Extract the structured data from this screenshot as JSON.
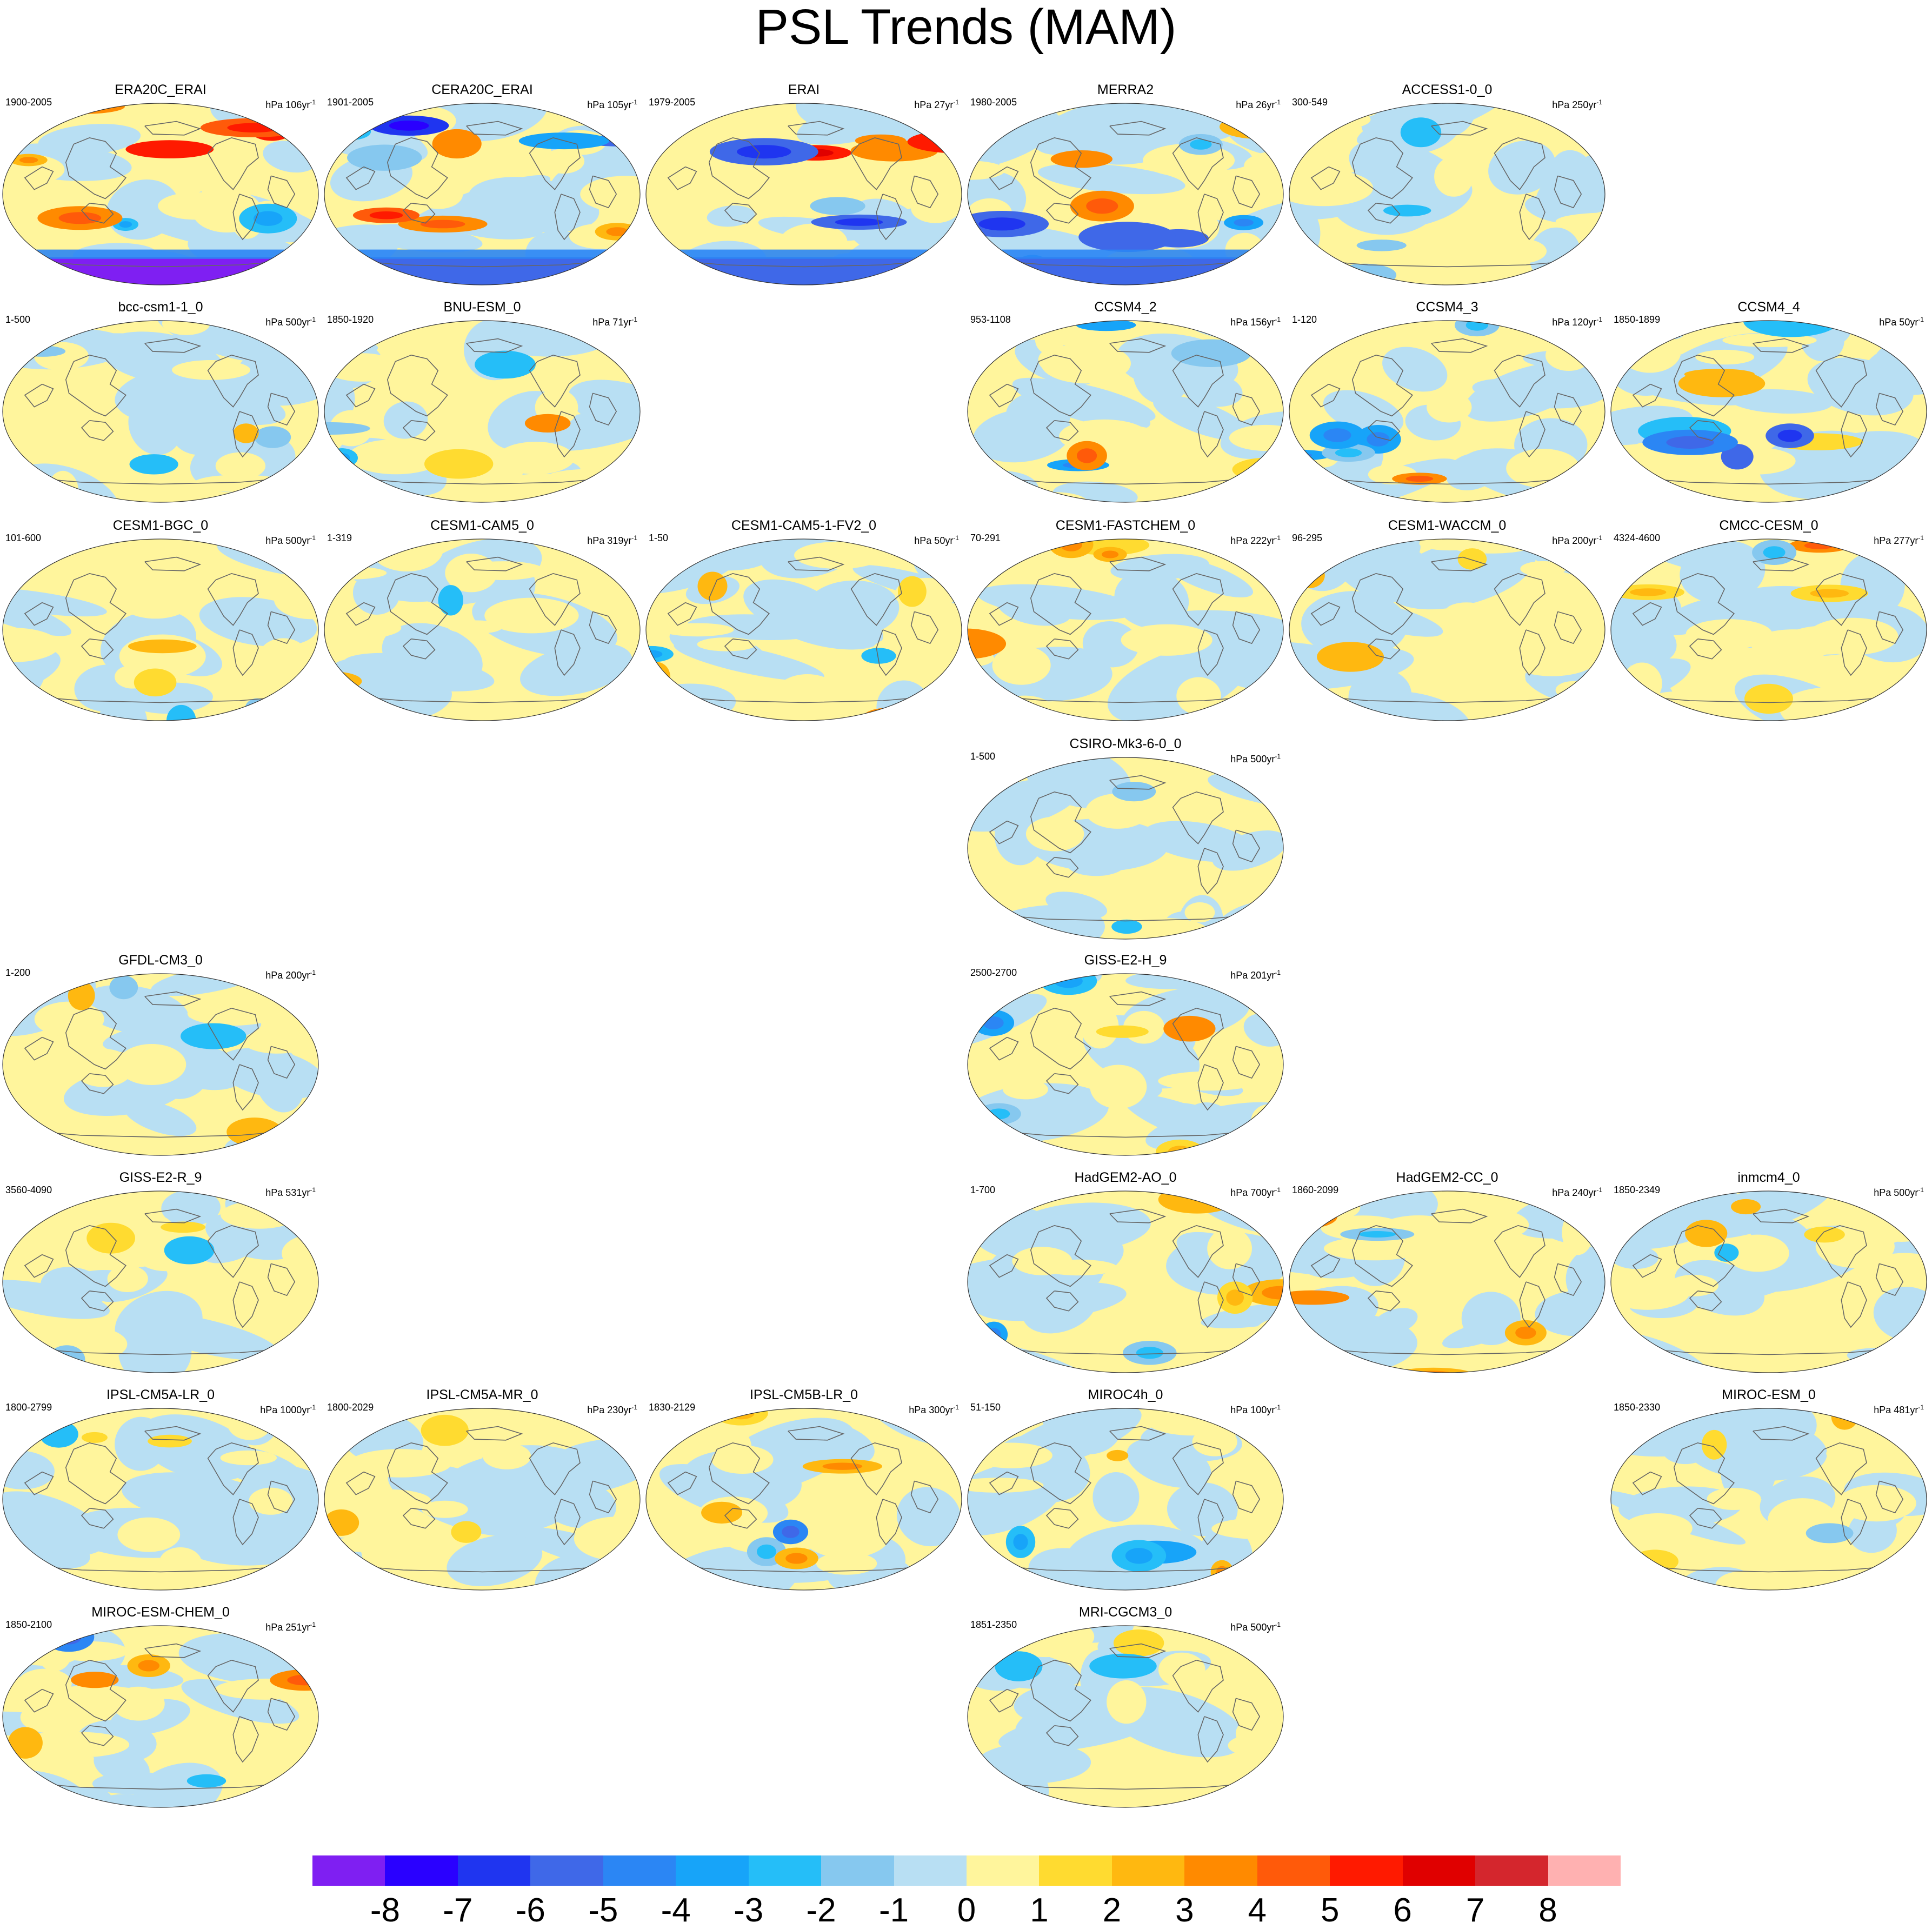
{
  "title": "PSL Trends (MAM)",
  "colors": {
    "neg8": "#7f1ff2",
    "neg7": "#2a00ff",
    "neg6": "#1f35f0",
    "neg5": "#3f68e8",
    "neg4": "#2b86f4",
    "neg3": "#17a4f9",
    "neg2": "#25bef8",
    "neg1": "#86c8ef",
    "neg0": "#b8dff3",
    "pos0": "#fff59c",
    "pos1": "#ffdb30",
    "pos2": "#ffb810",
    "pos3": "#ff8a00",
    "pos4": "#ff5a0a",
    "pos5": "#ff1a00",
    "pos6": "#e00000",
    "pos7": "#d4262d",
    "pos8": "#ffb1b1",
    "coast": "#666666",
    "outline": "#333333"
  },
  "colorbar": {
    "labels": [
      "-8",
      "-7",
      "-6",
      "-5",
      "-4",
      "-3",
      "-2",
      "-1",
      "0",
      "1",
      "2",
      "3",
      "4",
      "5",
      "6",
      "7",
      "8"
    ],
    "box_colors": [
      "#7f1ff2",
      "#2a00ff",
      "#1f35f0",
      "#3f68e8",
      "#2b86f4",
      "#17a4f9",
      "#25bef8",
      "#86c8ef",
      "#b8dff3",
      "#fff59c",
      "#ffdb30",
      "#ffb810",
      "#ff8a00",
      "#ff5a0a",
      "#ff1a00",
      "#e00000",
      "#d4262d",
      "#ffb1b1"
    ]
  },
  "panels": [
    {
      "name": "ERA20C_ERAI",
      "range": "1900-2005",
      "units_prefix": "hPa 106yr",
      "units_exp": "-1",
      "col": 0,
      "row": 0,
      "pattern": "strong",
      "seed": 11
    },
    {
      "name": "CERA20C_ERAI",
      "range": "1901-2005",
      "units_prefix": "hPa 105yr",
      "units_exp": "-1",
      "col": 1,
      "row": 0,
      "pattern": "strong",
      "seed": 23
    },
    {
      "name": "ERAI",
      "range": "1979-2005",
      "units_prefix": "hPa 27yr",
      "units_exp": "-1",
      "col": 2,
      "row": 0,
      "pattern": "strong",
      "seed": 37
    },
    {
      "name": "MERRA2",
      "range": "1980-2005",
      "units_prefix": "hPa 26yr",
      "units_exp": "-1",
      "col": 3,
      "row": 0,
      "pattern": "strong",
      "seed": 41
    },
    {
      "name": "ACCESS1-0_0",
      "range": "300-549",
      "units_prefix": "hPa 250yr",
      "units_exp": "-1",
      "col": 4,
      "row": 0,
      "pattern": "weak",
      "seed": 53
    },
    {
      "name": "bcc-csm1-1_0",
      "range": "1-500",
      "units_prefix": "hPa 500yr",
      "units_exp": "-1",
      "col": 0,
      "row": 1,
      "pattern": "weak",
      "seed": 61
    },
    {
      "name": "BNU-ESM_0",
      "range": "1850-1920",
      "units_prefix": "hPa 71yr",
      "units_exp": "-1",
      "col": 1,
      "row": 1,
      "pattern": "medium",
      "seed": 67
    },
    {
      "name": "CCSM4_2",
      "range": "953-1108",
      "units_prefix": "hPa 156yr",
      "units_exp": "-1",
      "col": 3,
      "row": 1,
      "pattern": "medium",
      "seed": 71
    },
    {
      "name": "CCSM4_3",
      "range": "1-120",
      "units_prefix": "hPa 120yr",
      "units_exp": "-1",
      "col": 4,
      "row": 1,
      "pattern": "medium",
      "seed": 79
    },
    {
      "name": "CCSM4_4",
      "range": "1850-1899",
      "units_prefix": "hPa 50yr",
      "units_exp": "-1",
      "col": 5,
      "row": 1,
      "pattern": "strongish",
      "seed": 83
    },
    {
      "name": "CESM1-BGC_0",
      "range": "101-600",
      "units_prefix": "hPa 500yr",
      "units_exp": "-1",
      "col": 0,
      "row": 2,
      "pattern": "weak",
      "seed": 89
    },
    {
      "name": "CESM1-CAM5_0",
      "range": "1-319",
      "units_prefix": "hPa 319yr",
      "units_exp": "-1",
      "col": 1,
      "row": 2,
      "pattern": "weak",
      "seed": 97
    },
    {
      "name": "CESM1-CAM5-1-FV2_0",
      "range": "1-50",
      "units_prefix": "hPa 50yr",
      "units_exp": "-1",
      "col": 2,
      "row": 2,
      "pattern": "medium",
      "seed": 101
    },
    {
      "name": "CESM1-FASTCHEM_0",
      "range": "70-291",
      "units_prefix": "hPa 222yr",
      "units_exp": "-1",
      "col": 3,
      "row": 2,
      "pattern": "medium",
      "seed": 103
    },
    {
      "name": "CESM1-WACCM_0",
      "range": "96-295",
      "units_prefix": "hPa 200yr",
      "units_exp": "-1",
      "col": 4,
      "row": 2,
      "pattern": "weak",
      "seed": 107
    },
    {
      "name": "CMCC-CESM_0",
      "range": "4324-4600",
      "units_prefix": "hPa 277yr",
      "units_exp": "-1",
      "col": 5,
      "row": 2,
      "pattern": "medium",
      "seed": 109
    },
    {
      "name": "CSIRO-Mk3-6-0_0",
      "range": "1-500",
      "units_prefix": "hPa 500yr",
      "units_exp": "-1",
      "col": 3,
      "row": 3,
      "pattern": "weak",
      "seed": 113
    },
    {
      "name": "GFDL-CM3_0",
      "range": "1-200",
      "units_prefix": "hPa 200yr",
      "units_exp": "-1",
      "col": 0,
      "row": 4,
      "pattern": "weak",
      "seed": 127
    },
    {
      "name": "GISS-E2-H_9",
      "range": "2500-2700",
      "units_prefix": "hPa 201yr",
      "units_exp": "-1",
      "col": 3,
      "row": 4,
      "pattern": "medium",
      "seed": 131
    },
    {
      "name": "GISS-E2-R_9",
      "range": "3560-4090",
      "units_prefix": "hPa 531yr",
      "units_exp": "-1",
      "col": 0,
      "row": 5,
      "pattern": "weak",
      "seed": 137
    },
    {
      "name": "HadGEM2-AO_0",
      "range": "1-700",
      "units_prefix": "hPa 700yr",
      "units_exp": "-1",
      "col": 3,
      "row": 5,
      "pattern": "medium",
      "seed": 139
    },
    {
      "name": "HadGEM2-CC_0",
      "range": "1860-2099",
      "units_prefix": "hPa 240yr",
      "units_exp": "-1",
      "col": 4,
      "row": 5,
      "pattern": "medium",
      "seed": 149
    },
    {
      "name": "inmcm4_0",
      "range": "1850-2349",
      "units_prefix": "hPa 500yr",
      "units_exp": "-1",
      "col": 5,
      "row": 5,
      "pattern": "weak",
      "seed": 151
    },
    {
      "name": "IPSL-CM5A-LR_0",
      "range": "1800-2799",
      "units_prefix": "hPa 1000yr",
      "units_exp": "-1",
      "col": 0,
      "row": 6,
      "pattern": "weak",
      "seed": 157
    },
    {
      "name": "IPSL-CM5A-MR_0",
      "range": "1800-2029",
      "units_prefix": "hPa 230yr",
      "units_exp": "-1",
      "col": 1,
      "row": 6,
      "pattern": "weak",
      "seed": 163
    },
    {
      "name": "IPSL-CM5B-LR_0",
      "range": "1830-2129",
      "units_prefix": "hPa 300yr",
      "units_exp": "-1",
      "col": 2,
      "row": 6,
      "pattern": "medium",
      "seed": 167
    },
    {
      "name": "MIROC4h_0",
      "range": "51-150",
      "units_prefix": "hPa 100yr",
      "units_exp": "-1",
      "col": 3,
      "row": 6,
      "pattern": "medium",
      "seed": 173
    },
    {
      "name": "MIROC-ESM_0",
      "range": "1850-2330",
      "units_prefix": "hPa 481yr",
      "units_exp": "-1",
      "col": 5,
      "row": 6,
      "pattern": "weak",
      "seed": 179
    },
    {
      "name": "MIROC-ESM-CHEM_0",
      "range": "1850-2100",
      "units_prefix": "hPa 251yr",
      "units_exp": "-1",
      "col": 0,
      "row": 7,
      "pattern": "medium",
      "seed": 181
    },
    {
      "name": "MRI-CGCM3_0",
      "range": "1851-2350",
      "units_prefix": "hPa 500yr",
      "units_exp": "-1",
      "col": 3,
      "row": 7,
      "pattern": "weak",
      "seed": 191
    }
  ]
}
